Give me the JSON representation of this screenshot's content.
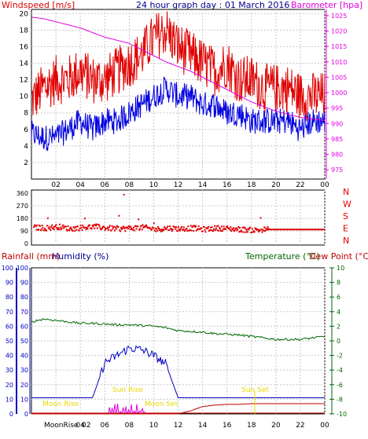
{
  "header": {
    "left_label": "Windspeed [m/s]",
    "title": "24 hour graph day : 01 March 2016",
    "right_label": "Barometer [hpa]"
  },
  "colors": {
    "wind_gust": "#e00000",
    "wind_avg": "#0000e0",
    "barometer": "#e000e0",
    "direction": "#e00000",
    "humidity": "#0000c0",
    "rainfall": "#c00000",
    "temperature": "#006400",
    "dewpoint": "#c00000",
    "sun_label": "#e8d800"
  },
  "x_ticks": [
    "02",
    "04",
    "06",
    "08",
    "10",
    "12",
    "14",
    "16",
    "18",
    "20",
    "22",
    "00"
  ],
  "wind_panel": {
    "left_ticks": [
      "2",
      "4",
      "6",
      "8",
      "10",
      "12",
      "14",
      "16",
      "18",
      "20"
    ],
    "right_ticks": [
      "975",
      "980",
      "985",
      "990",
      "995",
      "1000",
      "1005",
      "1010",
      "1015",
      "1020",
      "1025"
    ]
  },
  "direction_panel": {
    "left_ticks": [
      "0",
      "90",
      "180",
      "270",
      "360"
    ],
    "compass": [
      "N",
      "W",
      "S",
      "E",
      "N"
    ]
  },
  "bottom_panel": {
    "left_label": "Rainfall (mm)",
    "humidity_label": "Humidity (%)",
    "temp_label": "Temperature (°C)",
    "dew_label": "Dew Point (°C)",
    "rain_ticks": [
      "0",
      "10",
      "20",
      "30",
      "40",
      "50",
      "60",
      "70",
      "80",
      "90",
      "100"
    ],
    "hum_ticks": [
      "0",
      "10",
      "20",
      "30",
      "40",
      "50",
      "60",
      "70",
      "80",
      "90",
      "100"
    ],
    "temp_ticks": [
      "10",
      "8",
      "6",
      "4",
      "2",
      "0",
      "-2",
      "-4",
      "-6",
      "-8",
      "-10"
    ],
    "annotations": {
      "moon_rise": "Moon Rise",
      "sun_rise": "Sun Rise",
      "moon_set": "Moon Set",
      "sun_set": "Sun Set",
      "bottom_moonrise": "MoonRise",
      "bottom_02": "02"
    }
  },
  "chart_data": [
    {
      "type": "line",
      "title": "24 hour graph day : 01 March 2016",
      "x": [
        0,
        1,
        2,
        3,
        4,
        5,
        6,
        7,
        8,
        9,
        10,
        11,
        12,
        13,
        14,
        15,
        16,
        17,
        18,
        19,
        20,
        21,
        22,
        23,
        24
      ],
      "series": [
        {
          "name": "Windspeed [m/s]",
          "axis": "left",
          "values": [
            9.5,
            11,
            12,
            12,
            13,
            12,
            12,
            13,
            14,
            15,
            17,
            18,
            16,
            15,
            14,
            13,
            14,
            12,
            12,
            11,
            11,
            11,
            10,
            10,
            10
          ]
        },
        {
          "name": "Windspeed [m/s]",
          "axis": "left",
          "values": [
            5.5,
            5,
            5,
            6,
            7,
            6,
            7,
            7,
            8,
            9,
            10,
            11,
            10,
            10,
            9,
            9,
            8,
            8,
            7,
            7,
            7,
            7,
            6,
            7,
            7
          ]
        },
        {
          "name": "Barometer [hpa]",
          "axis": "right",
          "values": [
            1024.5,
            1024,
            1023,
            1022,
            1021,
            1019.5,
            1018,
            1017,
            1016,
            1014,
            1012,
            1010,
            1008.5,
            1007,
            1005,
            1003,
            1001,
            999,
            997,
            995.5,
            994,
            993,
            992,
            991.5,
            991
          ]
        }
      ],
      "ylim_left": [
        0,
        20
      ],
      "ylim_right": [
        975,
        1025
      ]
    },
    {
      "type": "scatter",
      "x": [
        0,
        1,
        2,
        3,
        4,
        5,
        6,
        7,
        8,
        9,
        10,
        11,
        12,
        13,
        14,
        15,
        16,
        17,
        18,
        19,
        20,
        21,
        22,
        23,
        24
      ],
      "values": [
        115,
        110,
        120,
        105,
        115,
        120,
        110,
        105,
        110,
        115,
        100,
        110,
        105,
        110,
        100,
        110,
        105,
        100,
        95,
        100,
        105,
        105,
        100,
        100,
        100
      ],
      "ylim": [
        0,
        360
      ]
    },
    {
      "type": "line",
      "x": [
        0,
        1,
        2,
        3,
        4,
        5,
        6,
        7,
        8,
        9,
        10,
        11,
        12,
        13,
        14,
        15,
        16,
        17,
        18,
        19,
        20,
        21,
        22,
        23,
        24
      ],
      "series": [
        {
          "name": "Humidity (%)",
          "axis": "humidity",
          "values": [
            11,
            11,
            11,
            11,
            11,
            11,
            35,
            40,
            45,
            44,
            40,
            34,
            11,
            11,
            11,
            11,
            11,
            11,
            11,
            11,
            11,
            11,
            11,
            11,
            11
          ]
        },
        {
          "name": "Temperature (°C)",
          "axis": "temperature",
          "values": [
            2.6,
            3.0,
            2.8,
            2.6,
            2.4,
            2.4,
            2.3,
            2.2,
            2.2,
            2.1,
            2.0,
            1.8,
            1.4,
            1.3,
            1.2,
            1.0,
            0.9,
            0.8,
            0.6,
            0.4,
            0.2,
            0.2,
            0.2,
            0.4,
            0.6
          ]
        },
        {
          "name": "Dew Point (°C)",
          "axis": "temperature",
          "values": [
            -10,
            -10,
            -10,
            -10,
            -10,
            -10,
            -10,
            -10,
            -10,
            -10,
            -10,
            -10,
            -10,
            -9.6,
            -9.0,
            -8.8,
            -8.7,
            -8.7,
            -8.6,
            -8.6,
            -8.6,
            -8.6,
            -8.6,
            -8.6,
            -8.6
          ]
        },
        {
          "name": "Rainfall (mm)",
          "axis": "rainfall",
          "values": [
            0,
            0,
            0,
            0,
            0,
            0,
            0,
            0,
            0,
            0,
            0,
            0,
            0,
            0,
            0,
            0,
            0,
            0,
            0,
            0,
            0,
            0,
            0,
            0,
            0
          ]
        }
      ],
      "ylim_humidity": [
        0,
        100
      ],
      "ylim_temperature": [
        -10,
        10
      ]
    }
  ]
}
